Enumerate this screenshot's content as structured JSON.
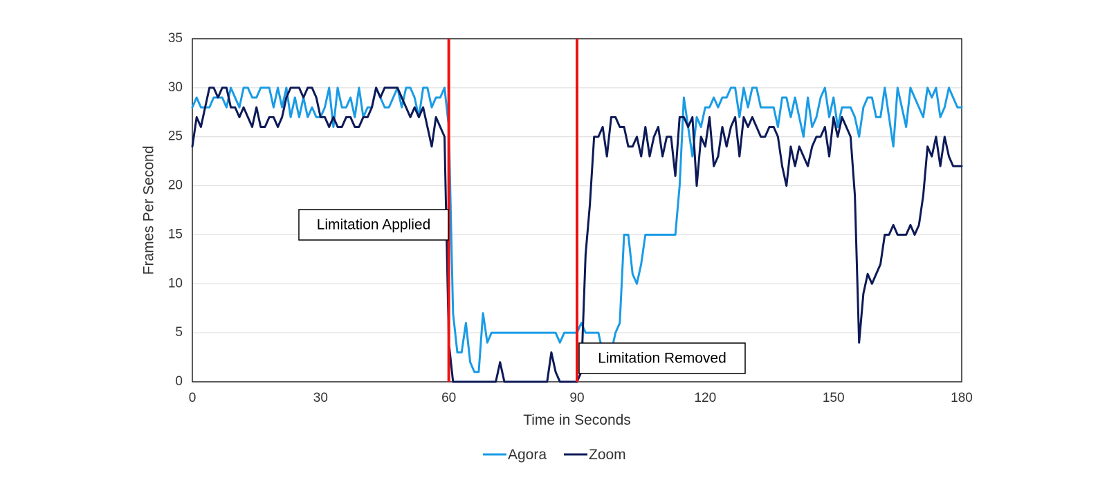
{
  "chart_data": {
    "type": "line",
    "xlabel": "Time in Seconds",
    "ylabel": "Frames Per Second",
    "xlim": [
      0,
      180
    ],
    "ylim": [
      0,
      35
    ],
    "xticks": [
      0,
      30,
      60,
      90,
      120,
      150,
      180
    ],
    "yticks": [
      0,
      5,
      10,
      15,
      20,
      25,
      30,
      35
    ],
    "grid": "horizontal",
    "legend": "bottom-center",
    "x": [
      0,
      1,
      2,
      3,
      4,
      5,
      6,
      7,
      8,
      9,
      10,
      11,
      12,
      13,
      14,
      15,
      16,
      17,
      18,
      19,
      20,
      21,
      22,
      23,
      24,
      25,
      26,
      27,
      28,
      29,
      30,
      31,
      32,
      33,
      34,
      35,
      36,
      37,
      38,
      39,
      40,
      41,
      42,
      43,
      44,
      45,
      46,
      47,
      48,
      49,
      50,
      51,
      52,
      53,
      54,
      55,
      56,
      57,
      58,
      59,
      60,
      61,
      62,
      63,
      64,
      65,
      66,
      67,
      68,
      69,
      70,
      71,
      72,
      73,
      74,
      75,
      76,
      77,
      78,
      79,
      80,
      81,
      82,
      83,
      84,
      85,
      86,
      87,
      88,
      89,
      90,
      91,
      92,
      93,
      94,
      95,
      96,
      97,
      98,
      99,
      100,
      101,
      102,
      103,
      104,
      105,
      106,
      107,
      108,
      109,
      110,
      111,
      112,
      113,
      114,
      115,
      116,
      117,
      118,
      119,
      120,
      121,
      122,
      123,
      124,
      125,
      126,
      127,
      128,
      129,
      130,
      131,
      132,
      133,
      134,
      135,
      136,
      137,
      138,
      139,
      140,
      141,
      142,
      143,
      144,
      145,
      146,
      147,
      148,
      149,
      150,
      151,
      152,
      153,
      154,
      155,
      156,
      157,
      158,
      159,
      160,
      161,
      162,
      163,
      164,
      165,
      166,
      167,
      168,
      169,
      170,
      171,
      172,
      173,
      174,
      175,
      176,
      177,
      178,
      179,
      180
    ],
    "series": [
      {
        "name": "Agora",
        "color": "#1a9be6",
        "values": [
          28,
          29,
          28,
          28,
          28,
          29,
          29,
          29,
          28,
          30,
          29,
          28,
          30,
          30,
          29,
          29,
          30,
          30,
          30,
          28,
          30,
          28,
          30,
          27,
          29,
          27,
          29,
          27,
          28,
          27,
          27,
          28,
          30,
          26,
          30,
          28,
          28,
          29,
          27,
          30,
          27,
          28,
          28,
          30,
          29,
          28,
          28,
          29,
          30,
          28,
          30,
          30,
          29,
          27,
          30,
          30,
          28,
          29,
          29,
          30,
          26,
          7,
          3,
          3,
          6,
          2,
          1,
          1,
          7,
          4,
          5,
          5,
          5,
          5,
          5,
          5,
          5,
          5,
          5,
          5,
          5,
          5,
          5,
          5,
          5,
          5,
          4,
          5,
          5,
          5,
          5,
          6,
          5,
          5,
          5,
          5,
          3,
          3,
          3,
          5,
          6,
          15,
          15,
          11,
          10,
          12,
          15,
          15,
          15,
          15,
          15,
          15,
          15,
          15,
          20,
          29,
          26,
          23,
          27,
          26,
          28,
          28,
          29,
          28,
          29,
          29,
          30,
          30,
          27,
          30,
          28,
          30,
          30,
          28,
          28,
          28,
          28,
          26,
          29,
          29,
          27,
          29,
          27,
          25,
          29,
          26,
          27,
          29,
          30,
          27,
          29,
          26,
          28,
          28,
          28,
          27,
          25,
          28,
          29,
          29,
          27,
          27,
          30,
          27,
          24,
          30,
          28,
          26,
          30,
          29,
          28,
          27,
          30,
          29,
          30,
          27,
          28,
          30,
          29,
          28,
          28
        ]
      },
      {
        "name": "Zoom",
        "color": "#0d1a57",
        "values": [
          24,
          27,
          26,
          28,
          30,
          30,
          29,
          30,
          30,
          28,
          28,
          27,
          28,
          27,
          26,
          28,
          26,
          26,
          27,
          27,
          26,
          27,
          29,
          30,
          30,
          30,
          29,
          30,
          30,
          29,
          27,
          27,
          26,
          27,
          26,
          26,
          27,
          27,
          26,
          26,
          27,
          27,
          28,
          30,
          29,
          30,
          30,
          30,
          30,
          29,
          28,
          27,
          28,
          27,
          28,
          26,
          24,
          27,
          26,
          25,
          4,
          0,
          0,
          0,
          0,
          0,
          0,
          0,
          0,
          0,
          0,
          0,
          2,
          0,
          0,
          0,
          0,
          0,
          0,
          0,
          0,
          0,
          0,
          0,
          3,
          1,
          0,
          0,
          0,
          0,
          0,
          1,
          13,
          18,
          25,
          25,
          26,
          23,
          27,
          27,
          26,
          26,
          24,
          24,
          25,
          23,
          26,
          23,
          25,
          26,
          23,
          25,
          25,
          21,
          27,
          27,
          26,
          27,
          20,
          25,
          24,
          27,
          22,
          23,
          26,
          24,
          26,
          27,
          23,
          27,
          26,
          27,
          26,
          25,
          25,
          26,
          26,
          25,
          22,
          20,
          24,
          22,
          24,
          23,
          22,
          24,
          25,
          25,
          26,
          23,
          27,
          25,
          27,
          26,
          25,
          19,
          4,
          9,
          11,
          10,
          11,
          12,
          15,
          15,
          16,
          15,
          15,
          15,
          16,
          15,
          16,
          19,
          24,
          23,
          25,
          22,
          25,
          23,
          22,
          22,
          22
        ]
      }
    ],
    "annotations": [
      {
        "text": "Limitation Applied",
        "x": 60
      },
      {
        "text": "Limitation Removed",
        "x": 90
      }
    ],
    "marker_color": "#ee1111"
  }
}
